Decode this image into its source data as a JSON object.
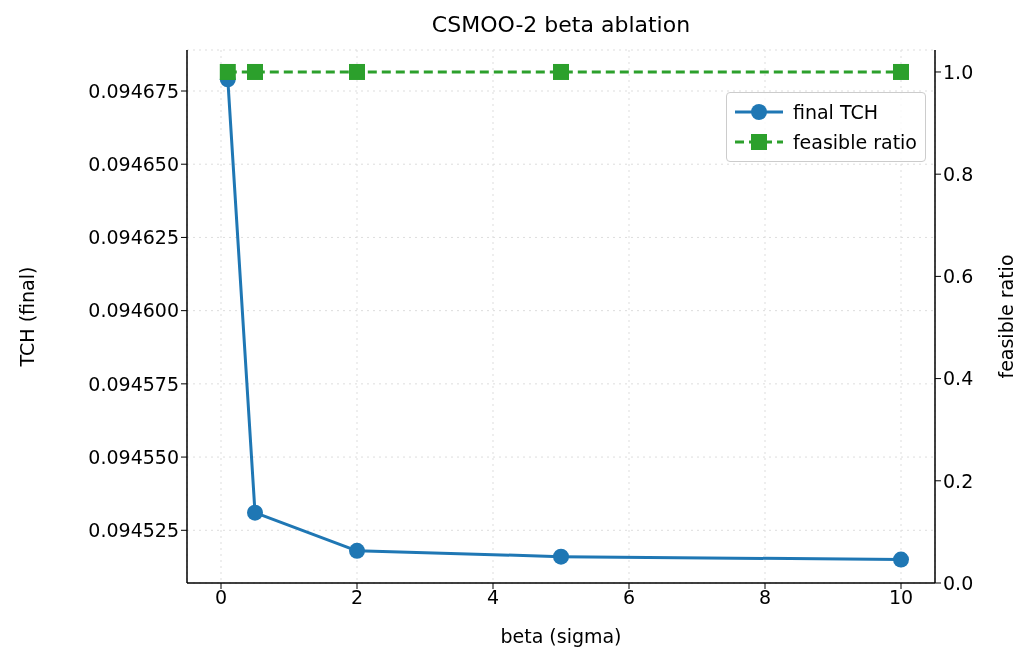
{
  "chart_data": {
    "type": "line",
    "title": "CSMOO-2 beta ablation",
    "xlabel": "beta (sigma)",
    "ylabel": "TCH (final)",
    "y2label": "feasible ratio",
    "x": [
      0.1,
      0.5,
      2,
      5,
      10
    ],
    "series": [
      {
        "name": "final TCH",
        "color": "#1f77b4",
        "values": [
          0.094679,
          0.094531,
          0.094518,
          0.094516,
          0.094515
        ],
        "marker": "circle",
        "line_style": "solid"
      },
      {
        "name": "feasible ratio",
        "color": "#2ca02c",
        "values": [
          1,
          1,
          1,
          1,
          1
        ],
        "axis": "y2",
        "marker": "square",
        "line_style": "dashed"
      }
    ],
    "xlim": [
      -0.5,
      10.5
    ],
    "xticks": [
      0,
      2,
      4,
      6,
      8,
      10
    ],
    "ylim": [
      0.094507,
      0.094689
    ],
    "yticks": [
      0.094525,
      {
        "value": 0.09455,
        "label": "0.094550"
      },
      0.094575,
      {
        "value": 0.0946,
        "label": "0.094600"
      },
      0.094625,
      {
        "value": 0.09465,
        "label": "0.094650"
      },
      0.094675
    ],
    "y2lim": [
      0,
      1.043
    ],
    "y2ticks": [
      {
        "value": 0,
        "label": "0.0"
      },
      0.2,
      0.4,
      0.6,
      0.8,
      {
        "value": 1,
        "label": "1.0"
      }
    ],
    "grid": true,
    "legend": "top right"
  }
}
